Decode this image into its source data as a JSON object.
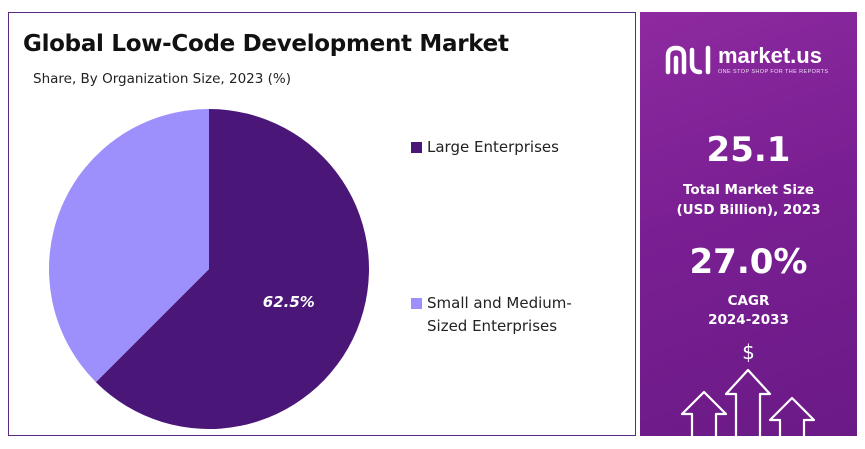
{
  "chart_data": {
    "type": "pie",
    "title": "Global Low-Code Development Market",
    "subtitle": "Share, By Organization Size, 2023 (%)",
    "slices": [
      {
        "label": "Large Enterprises",
        "value": 62.5,
        "color": "#4a1678",
        "data_label": "62.5%"
      },
      {
        "label": "Small and Medium-Sized Enterprises",
        "value": 37.5,
        "color": "#9d90fc",
        "data_label": ""
      }
    ],
    "legend_placement": "right"
  },
  "legend": {
    "items": [
      {
        "line1": "Large Enterprises",
        "line2": ""
      },
      {
        "line1": "Small and Medium-",
        "line2": "Sized Enterprises"
      }
    ]
  },
  "sidebar": {
    "brand_name": "market.us",
    "tagline": "ONE STOP SHOP FOR THE REPORTS",
    "market_size_value": "25.1",
    "market_size_label_1": "Total Market Size",
    "market_size_label_2": "(USD Billion), 2023",
    "cagr_value": "27.0%",
    "cagr_label_1": "CAGR",
    "cagr_label_2": "2024-2033",
    "currency_symbol": "$",
    "background_color": "#7a1f93"
  }
}
